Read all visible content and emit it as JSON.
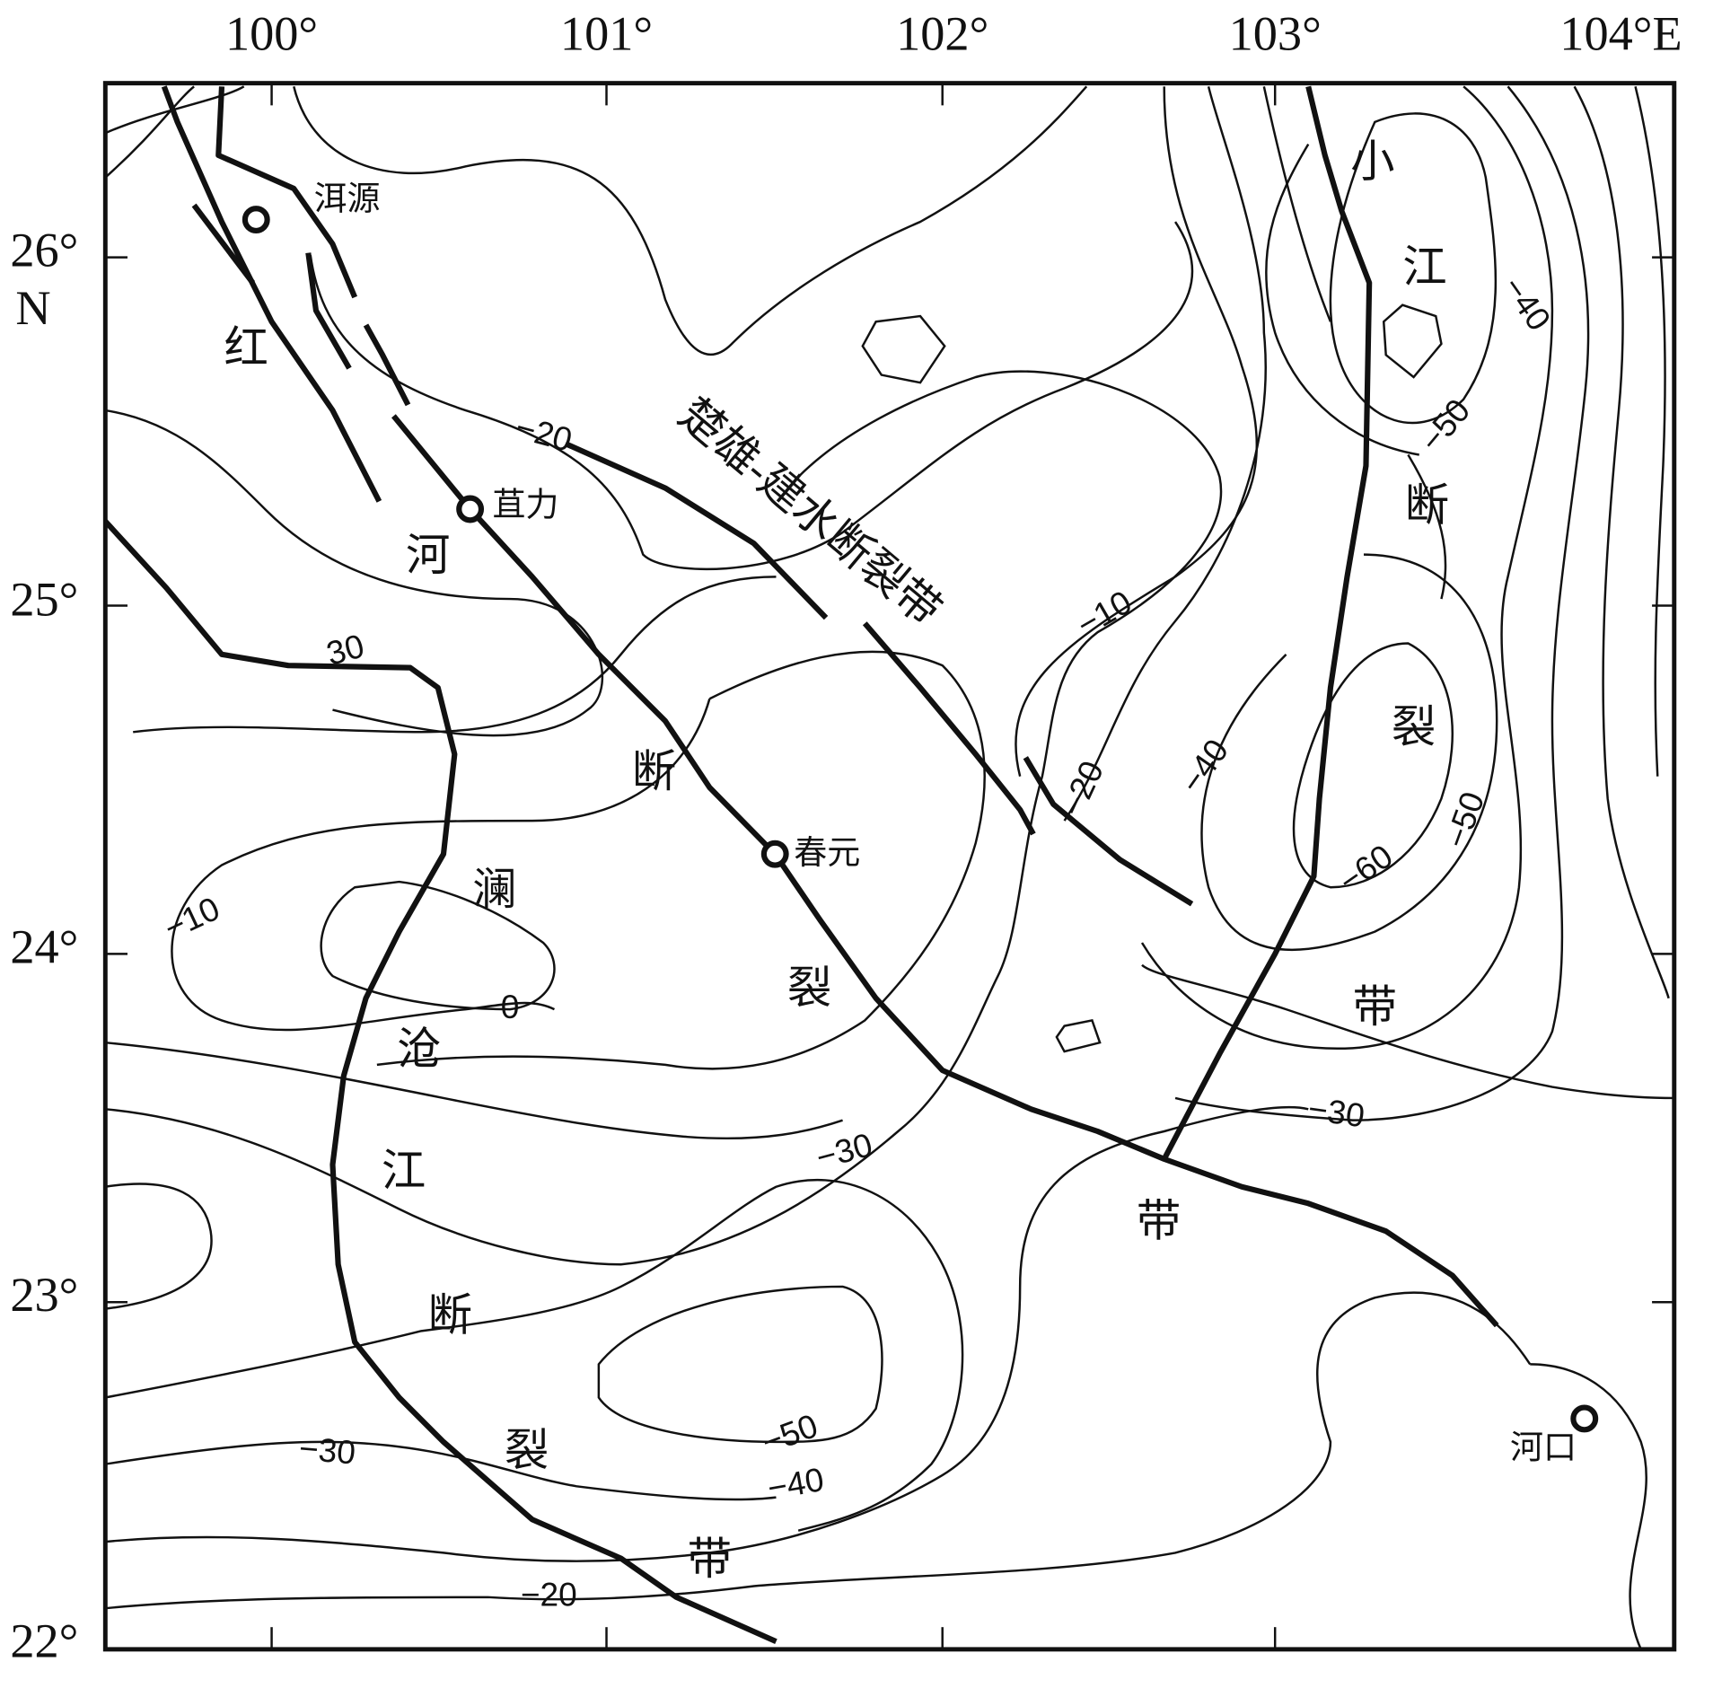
{
  "axes": {
    "x_labels": [
      "100°",
      "101°",
      "102°",
      "103°",
      "104°E"
    ],
    "y_labels": [
      "26°",
      "25°",
      "24°",
      "23°",
      "22°"
    ],
    "n_label": "N"
  },
  "places": [
    "洱源",
    "苴力",
    "春元",
    "河口"
  ],
  "faults": {
    "red_river": [
      "红",
      "河",
      "断",
      "裂",
      "带"
    ],
    "lancang": [
      "澜",
      "沧",
      "江",
      "断",
      "裂",
      "带"
    ],
    "xiaojiang": [
      "小",
      "江",
      "断",
      "裂",
      "带"
    ],
    "chuxiong": "楚雄-建水断裂带"
  },
  "contour_labels": [
    "−20",
    "−10",
    "30",
    "−20",
    "−40",
    "−40",
    "−50",
    "−50",
    "−60",
    "−10",
    "0",
    "−30",
    "−30",
    "−50",
    "−40",
    "−30",
    "−20"
  ]
}
